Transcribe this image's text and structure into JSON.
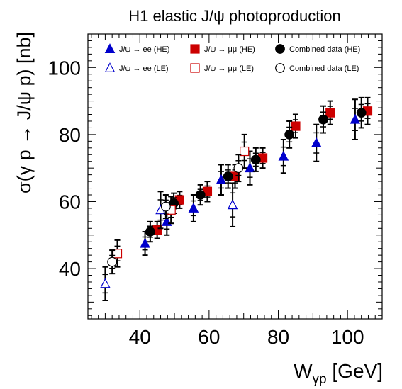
{
  "chart_data": {
    "type": "scatter",
    "title": "H1 elastic J/ψ photoproduction",
    "xlabel_main": "W",
    "xlabel_sub": "γp",
    "xlabel_unit": " [GeV]",
    "ylabel": "σ(γ p → J/ψ p) [nb]",
    "xlim": [
      25,
      110
    ],
    "ylim": [
      25,
      110
    ],
    "xticks": [
      40,
      60,
      80,
      100
    ],
    "yticks": [
      40,
      60,
      80,
      100
    ],
    "grid": false,
    "legend_position": "top",
    "series": [
      {
        "name": "J/ψ → ee (HE)",
        "marker": "triangle",
        "filled": true,
        "color": "#0000cc",
        "points": [
          {
            "x": 41.5,
            "y": 47.5,
            "err": 3.5
          },
          {
            "x": 47.8,
            "y": 54.0,
            "err": 4.0
          },
          {
            "x": 55.5,
            "y": 58.0,
            "err": 4.0
          },
          {
            "x": 63.5,
            "y": 66.5,
            "err": 4.5
          },
          {
            "x": 71.8,
            "y": 70.0,
            "err": 5.0
          },
          {
            "x": 81.5,
            "y": 73.5,
            "err": 5.0
          },
          {
            "x": 91.0,
            "y": 77.5,
            "err": 5.5
          },
          {
            "x": 102.2,
            "y": 84.5,
            "err": 6.0
          }
        ]
      },
      {
        "name": "J/ψ → μμ (HE)",
        "marker": "square",
        "filled": true,
        "color": "#cc0000",
        "points": [
          {
            "x": 45.0,
            "y": 51.5,
            "err": 2.5
          },
          {
            "x": 51.5,
            "y": 60.5,
            "err": 2.5
          },
          {
            "x": 59.5,
            "y": 63.0,
            "err": 3.0
          },
          {
            "x": 67.5,
            "y": 67.5,
            "err": 3.5
          },
          {
            "x": 75.5,
            "y": 73.0,
            "err": 3.0
          },
          {
            "x": 85.0,
            "y": 82.5,
            "err": 3.5
          },
          {
            "x": 95.0,
            "y": 86.5,
            "err": 3.5
          },
          {
            "x": 105.8,
            "y": 87.0,
            "err": 4.0
          }
        ]
      },
      {
        "name": "Combined data (HE)",
        "marker": "circle",
        "filled": true,
        "color": "#000000",
        "points": [
          {
            "x": 43.0,
            "y": 51.0,
            "err": 3.0
          },
          {
            "x": 49.8,
            "y": 59.5,
            "err": 3.0
          },
          {
            "x": 57.5,
            "y": 62.0,
            "err": 3.0
          },
          {
            "x": 65.5,
            "y": 67.5,
            "err": 3.5
          },
          {
            "x": 73.5,
            "y": 72.5,
            "err": 3.5
          },
          {
            "x": 83.2,
            "y": 80.0,
            "err": 4.0
          },
          {
            "x": 93.0,
            "y": 84.5,
            "err": 4.0
          },
          {
            "x": 104.0,
            "y": 86.5,
            "err": 4.5
          }
        ]
      },
      {
        "name": "J/ψ → ee (LE)",
        "marker": "triangle",
        "filled": false,
        "color": "#0000cc",
        "points": [
          {
            "x": 30.0,
            "y": 35.5,
            "err": 5.0
          },
          {
            "x": 46.0,
            "y": 57.5,
            "err": 5.5
          },
          {
            "x": 66.8,
            "y": 59.0,
            "err": 6.5
          }
        ]
      },
      {
        "name": "J/ψ → μμ (LE)",
        "marker": "square",
        "filled": false,
        "color": "#cc0000",
        "points": [
          {
            "x": 33.5,
            "y": 44.5,
            "err": 4.0
          },
          {
            "x": 49.0,
            "y": 57.5,
            "err": 4.0
          },
          {
            "x": 70.2,
            "y": 75.0,
            "err": 5.0
          }
        ]
      },
      {
        "name": "Combined data (LE)",
        "marker": "circle",
        "filled": false,
        "color": "#000000",
        "points": [
          {
            "x": 32.0,
            "y": 42.0,
            "err": 3.5
          },
          {
            "x": 47.5,
            "y": 58.5,
            "err": 3.5
          },
          {
            "x": 68.5,
            "y": 70.0,
            "err": 4.0
          }
        ]
      }
    ]
  }
}
